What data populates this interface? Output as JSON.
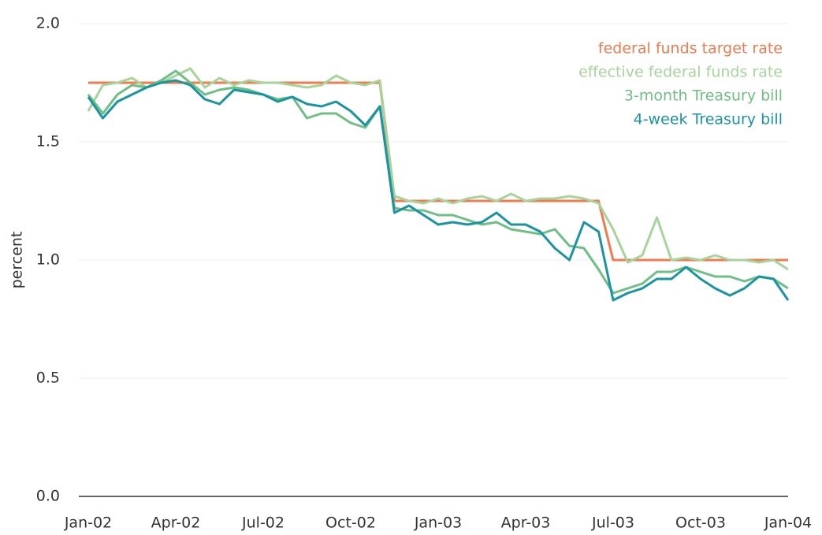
{
  "chart_data": {
    "type": "line",
    "y_label": "percent",
    "categories": [
      "Jan-02",
      null,
      null,
      null,
      null,
      null,
      "Apr-02",
      null,
      null,
      null,
      null,
      null,
      "Jul-02",
      null,
      null,
      null,
      null,
      null,
      "Oct-02",
      null,
      null,
      null,
      null,
      null,
      "Jan-03",
      null,
      null,
      null,
      null,
      null,
      "Apr-03",
      null,
      null,
      null,
      null,
      null,
      "Jul-03",
      null,
      null,
      null,
      null,
      null,
      "Oct-03",
      null,
      null,
      null,
      null,
      null,
      "Jan-04"
    ],
    "series": [
      {
        "name": "federal funds target rate",
        "color": "#ef7b4f",
        "values": [
          1.75,
          1.75,
          1.75,
          1.75,
          1.75,
          1.75,
          1.75,
          1.75,
          1.75,
          1.75,
          1.75,
          1.75,
          1.75,
          1.75,
          1.75,
          1.75,
          1.75,
          1.75,
          1.75,
          1.75,
          1.75,
          1.25,
          1.25,
          1.25,
          1.25,
          1.25,
          1.25,
          1.25,
          1.25,
          1.25,
          1.25,
          1.25,
          1.25,
          1.25,
          1.25,
          1.25,
          1.0,
          1.0,
          1.0,
          1.0,
          1.0,
          1.0,
          1.0,
          1.0,
          1.0,
          1.0,
          1.0,
          1.0,
          1.0
        ]
      },
      {
        "name": "effective federal funds rate",
        "color": "#a6d49a",
        "values": [
          1.63,
          1.74,
          1.75,
          1.77,
          1.73,
          1.75,
          1.78,
          1.81,
          1.73,
          1.77,
          1.74,
          1.76,
          1.75,
          1.75,
          1.74,
          1.73,
          1.74,
          1.78,
          1.75,
          1.74,
          1.76,
          1.27,
          1.25,
          1.24,
          1.26,
          1.24,
          1.26,
          1.27,
          1.25,
          1.28,
          1.25,
          1.26,
          1.26,
          1.27,
          1.26,
          1.24,
          1.13,
          0.99,
          1.02,
          1.18,
          1.0,
          1.01,
          1.0,
          1.02,
          1.0,
          1.0,
          0.99,
          1.0,
          0.96
        ]
      },
      {
        "name": "3-month Treasury bill",
        "color": "#6dbf83",
        "values": [
          1.7,
          1.62,
          1.7,
          1.74,
          1.73,
          1.76,
          1.8,
          1.75,
          1.7,
          1.72,
          1.73,
          1.72,
          1.7,
          1.68,
          1.69,
          1.6,
          1.62,
          1.62,
          1.58,
          1.56,
          1.65,
          1.22,
          1.21,
          1.21,
          1.19,
          1.19,
          1.17,
          1.15,
          1.16,
          1.13,
          1.12,
          1.11,
          1.13,
          1.06,
          1.05,
          0.96,
          0.86,
          0.88,
          0.9,
          0.95,
          0.95,
          0.97,
          0.95,
          0.93,
          0.93,
          0.91,
          0.93,
          0.92,
          0.88
        ]
      },
      {
        "name": "4-week Treasury bill",
        "color": "#1a93a3",
        "values": [
          1.69,
          1.6,
          1.67,
          1.7,
          1.73,
          1.75,
          1.76,
          1.74,
          1.68,
          1.66,
          1.72,
          1.71,
          1.7,
          1.67,
          1.69,
          1.66,
          1.65,
          1.67,
          1.63,
          1.57,
          1.65,
          1.2,
          1.23,
          1.19,
          1.15,
          1.16,
          1.15,
          1.16,
          1.2,
          1.15,
          1.15,
          1.12,
          1.05,
          1.0,
          1.16,
          1.12,
          0.83,
          0.86,
          0.88,
          0.92,
          0.92,
          0.97,
          0.92,
          0.88,
          0.85,
          0.88,
          0.93,
          0.92,
          0.83
        ]
      }
    ],
    "ylim": [
      0,
      2
    ],
    "yticks": [
      {
        "value": 0,
        "label": "0.0"
      },
      0.5,
      {
        "value": 1,
        "label": "1.0"
      },
      1.5,
      {
        "value": 2,
        "label": "2.0"
      }
    ],
    "grid": true,
    "legend": "top-right"
  }
}
